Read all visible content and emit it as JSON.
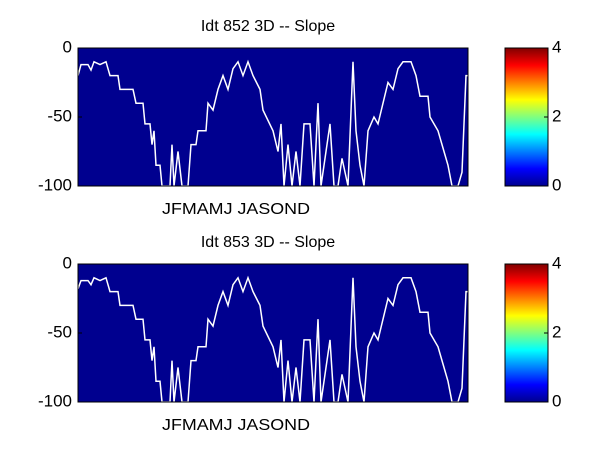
{
  "chart_data": [
    {
      "type": "line",
      "title": "Idt  852 3D   -- Slope",
      "month_label": "JFMAMJ JASOND",
      "field_color": "#00008f",
      "color": "#ffffff",
      "xlim": [
        0,
        390
      ],
      "ylim": [
        -100,
        0
      ],
      "yticks": [
        0,
        -50,
        -100
      ],
      "colorbar": {
        "lim": [
          0,
          4
        ],
        "ticks": [
          0,
          2,
          4
        ]
      },
      "x": [
        0,
        3,
        10,
        13,
        16,
        22,
        28,
        32,
        40,
        42,
        55,
        58,
        65,
        67,
        72,
        74,
        76,
        78,
        82,
        84,
        92,
        94,
        96,
        100,
        104,
        110,
        113,
        118,
        120,
        128,
        130,
        135,
        140,
        145,
        150,
        155,
        160,
        165,
        170,
        175,
        182,
        185,
        195,
        200,
        203,
        206,
        210,
        214,
        218,
        222,
        226,
        232,
        236,
        240,
        243,
        248,
        252,
        256,
        260,
        264,
        270,
        275,
        278,
        282,
        286,
        290,
        296,
        300,
        305,
        310,
        315,
        320,
        325,
        333,
        338,
        342,
        350,
        352,
        360,
        366,
        370,
        374,
        380,
        384,
        388,
        390
      ],
      "values": [
        -20,
        -12,
        -12,
        -16,
        -10,
        -12,
        -10,
        -20,
        -20,
        -30,
        -30,
        -40,
        -40,
        -55,
        -55,
        -70,
        -60,
        -85,
        -85,
        -100,
        -100,
        -70,
        -100,
        -75,
        -100,
        -100,
        -70,
        -70,
        -60,
        -60,
        -40,
        -45,
        -30,
        -20,
        -30,
        -15,
        -10,
        -20,
        -10,
        -20,
        -30,
        -45,
        -60,
        -75,
        -55,
        -100,
        -70,
        -100,
        -75,
        -100,
        -55,
        -55,
        -100,
        -40,
        -100,
        -75,
        -55,
        -100,
        -100,
        -80,
        -100,
        -10,
        -60,
        -85,
        -100,
        -60,
        -50,
        -55,
        -40,
        -25,
        -30,
        -15,
        -10,
        -10,
        -20,
        -35,
        -35,
        -50,
        -60,
        -75,
        -85,
        -100,
        -100,
        -90,
        -20,
        -20
      ]
    },
    {
      "type": "line",
      "title": "Idt  853 3D   -- Slope",
      "month_label": "JFMAMJ JASOND",
      "field_color": "#00008f",
      "color": "#ffffff",
      "xlim": [
        0,
        390
      ],
      "ylim": [
        -100,
        0
      ],
      "yticks": [
        0,
        -50,
        -100
      ],
      "colorbar": {
        "lim": [
          0,
          4
        ],
        "ticks": [
          0,
          2,
          4
        ]
      },
      "x": [
        0,
        3,
        10,
        13,
        16,
        22,
        28,
        32,
        40,
        42,
        55,
        58,
        65,
        67,
        72,
        74,
        76,
        78,
        82,
        84,
        92,
        94,
        96,
        100,
        104,
        110,
        113,
        118,
        120,
        128,
        130,
        135,
        140,
        145,
        150,
        155,
        160,
        165,
        170,
        175,
        182,
        185,
        195,
        200,
        203,
        206,
        210,
        214,
        218,
        222,
        226,
        232,
        236,
        240,
        243,
        248,
        252,
        256,
        260,
        264,
        270,
        275,
        278,
        282,
        286,
        290,
        296,
        300,
        305,
        310,
        315,
        320,
        325,
        333,
        338,
        342,
        350,
        352,
        360,
        366,
        370,
        374,
        380,
        384,
        388,
        390
      ],
      "values": [
        -18,
        -12,
        -12,
        -15,
        -10,
        -12,
        -10,
        -20,
        -20,
        -30,
        -30,
        -40,
        -40,
        -55,
        -55,
        -70,
        -60,
        -85,
        -85,
        -100,
        -100,
        -70,
        -100,
        -75,
        -100,
        -100,
        -70,
        -70,
        -60,
        -60,
        -40,
        -45,
        -30,
        -20,
        -30,
        -15,
        -10,
        -20,
        -10,
        -20,
        -30,
        -45,
        -60,
        -75,
        -55,
        -100,
        -70,
        -100,
        -75,
        -100,
        -55,
        -55,
        -100,
        -40,
        -100,
        -75,
        -55,
        -100,
        -100,
        -80,
        -100,
        -10,
        -60,
        -85,
        -100,
        -60,
        -50,
        -55,
        -40,
        -25,
        -30,
        -15,
        -10,
        -10,
        -20,
        -35,
        -35,
        -50,
        -60,
        -75,
        -85,
        -100,
        -100,
        -90,
        -20,
        -20
      ]
    }
  ]
}
